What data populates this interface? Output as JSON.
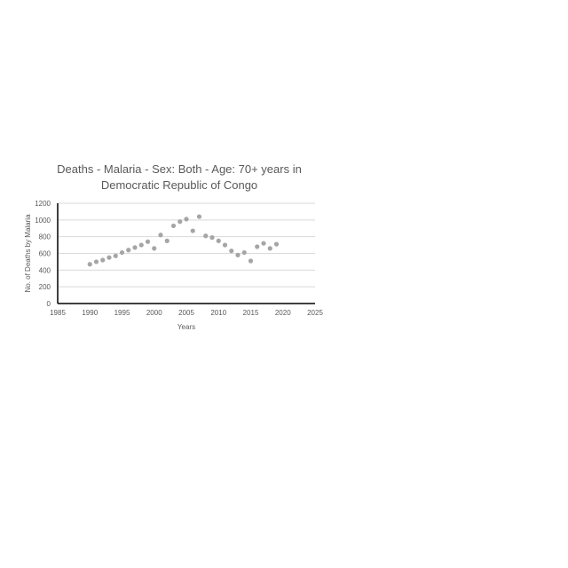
{
  "chart_data": {
    "type": "scatter",
    "title_line1": "Deaths - Malaria - Sex: Both - Age: 70+ years in",
    "title_line2": "Democratic Republic of Congo",
    "xlabel": "Years",
    "ylabel": "No. of Deaths by Malaria",
    "xlim": [
      1985,
      2025
    ],
    "ylim": [
      0,
      1200
    ],
    "xticks": [
      1985,
      1990,
      1995,
      2000,
      2005,
      2010,
      2015,
      2020,
      2025
    ],
    "yticks": [
      0,
      200,
      400,
      600,
      800,
      1000,
      1200
    ],
    "grid": "horizontal",
    "marker_color": "#a5a5a5",
    "x": [
      1990,
      1991,
      1992,
      1993,
      1994,
      1995,
      1996,
      1997,
      1998,
      1999,
      2000,
      2001,
      2002,
      2003,
      2004,
      2005,
      2006,
      2007,
      2008,
      2009,
      2010,
      2011,
      2012,
      2013,
      2014,
      2015,
      2016,
      2017,
      2018,
      2019
    ],
    "y": [
      470,
      500,
      520,
      550,
      570,
      610,
      640,
      670,
      700,
      740,
      660,
      820,
      750,
      930,
      980,
      1010,
      870,
      1040,
      810,
      790,
      750,
      700,
      630,
      580,
      610,
      510,
      680,
      720,
      660,
      710
    ]
  }
}
